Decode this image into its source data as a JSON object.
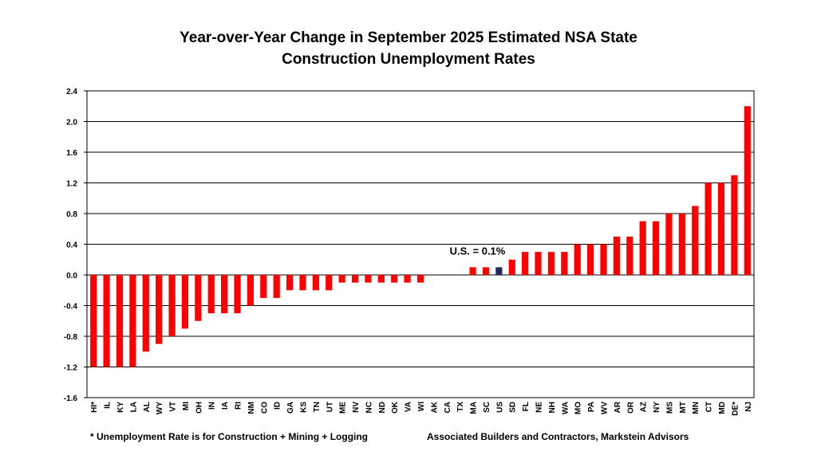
{
  "chart_data": {
    "type": "bar",
    "title_line1": "Year-over-Year Change in September 2025 Estimated NSA State",
    "title_line2": "Construction Unemployment Rates",
    "xlabel": "",
    "ylabel": "",
    "ylim": [
      -1.6,
      2.4
    ],
    "yticks": [
      -1.6,
      -1.2,
      -0.8,
      -0.4,
      0.0,
      0.4,
      0.8,
      1.2,
      1.6,
      2.0,
      2.4
    ],
    "grid": true,
    "categories": [
      "HI*",
      "IL",
      "KY",
      "LA",
      "AL",
      "WY",
      "VT",
      "MI",
      "OH",
      "IN",
      "IA",
      "RI",
      "NM",
      "CO",
      "ID",
      "GA",
      "KS",
      "TN",
      "UT",
      "ME",
      "NV",
      "NC",
      "ND",
      "OK",
      "VA",
      "WI",
      "AK",
      "CA",
      "TX",
      "MA",
      "SC",
      "US",
      "SD",
      "FL",
      "NE",
      "NH",
      "WA",
      "MO",
      "PA",
      "WV",
      "AR",
      "OR",
      "AZ",
      "NY",
      "MS",
      "MT",
      "MN",
      "CT",
      "MD",
      "DE*",
      "NJ"
    ],
    "values": [
      -1.2,
      -1.2,
      -1.2,
      -1.2,
      -1.0,
      -0.9,
      -0.8,
      -0.7,
      -0.6,
      -0.5,
      -0.5,
      -0.5,
      -0.4,
      -0.3,
      -0.3,
      -0.2,
      -0.2,
      -0.2,
      -0.2,
      -0.1,
      -0.1,
      -0.1,
      -0.1,
      -0.1,
      -0.1,
      -0.1,
      0.0,
      0.0,
      0.0,
      0.1,
      0.1,
      0.1,
      0.2,
      0.3,
      0.3,
      0.3,
      0.3,
      0.4,
      0.4,
      0.4,
      0.5,
      0.5,
      0.7,
      0.7,
      0.8,
      0.8,
      0.9,
      1.2,
      1.2,
      1.3,
      2.2
    ],
    "highlight_category": "US",
    "annotation": "U.S. = 0.1%",
    "colors": {
      "bar": "#ff0000",
      "highlight": "#1f2a5c",
      "grid": "#000000"
    }
  },
  "footnote": "* Unemployment Rate is for Construction + Mining + Logging",
  "source": "Associated Builders and Contractors, Markstein Advisors"
}
